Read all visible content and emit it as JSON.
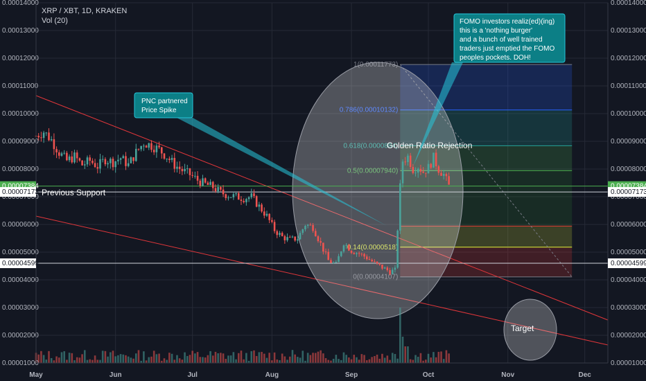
{
  "header": {
    "symbol": "XRP / XBT, 1D, KRAKEN",
    "volume": "Vol (20)"
  },
  "colors": {
    "background": "#131722",
    "up": "#4aa39b",
    "down": "#ef5350",
    "grid": "#262a36",
    "trend": "#e0363a",
    "accent": "#26c6da",
    "price_green": "#4caf50"
  },
  "chart_data": {
    "type": "candlestick",
    "ylim": [
      1e-05,
      0.00014
    ],
    "y_ticks": [
      "0.00001000",
      "0.00002000",
      "0.00003000",
      "0.00004000",
      "0.00005000",
      "0.00006000",
      "0.00007000",
      "0.00008000",
      "0.00009000",
      "0.00010000",
      "0.00011000",
      "0.00012000",
      "0.00013000",
      "0.00014000"
    ],
    "y_tick_values": [
      1e-05,
      2e-05,
      3e-05,
      4e-05,
      5e-05,
      6e-05,
      7e-05,
      8e-05,
      9e-05,
      0.0001,
      0.00011,
      0.00012,
      0.00013,
      0.00014
    ],
    "x_ticks": [
      "May",
      "Jun",
      "Jul",
      "Aug",
      "Sep",
      "Oct",
      "Nov",
      "Dec"
    ],
    "x_tick_dates": [
      "2018-05-01",
      "2018-06-01",
      "2018-07-01",
      "2018-08-01",
      "2018-09-01",
      "2018-10-01",
      "2018-11-01",
      "2018-12-01"
    ],
    "x_range": [
      "2018-05-01",
      "2018-12-10"
    ],
    "price_path": [
      [
        "2018-05-01",
        9.2e-05
      ],
      [
        "2018-05-04",
        9.35e-05
      ],
      [
        "2018-05-07",
        9.05e-05
      ],
      [
        "2018-05-10",
        8.6e-05
      ],
      [
        "2018-05-13",
        8.3e-05
      ],
      [
        "2018-05-16",
        8.45e-05
      ],
      [
        "2018-05-19",
        8.15e-05
      ],
      [
        "2018-05-22",
        8.3e-05
      ],
      [
        "2018-05-25",
        8.1e-05
      ],
      [
        "2018-05-28",
        8.35e-05
      ],
      [
        "2018-05-31",
        8.25e-05
      ],
      [
        "2018-06-03",
        8.4e-05
      ],
      [
        "2018-06-06",
        8.15e-05
      ],
      [
        "2018-06-09",
        8.6e-05
      ],
      [
        "2018-06-12",
        8.95e-05
      ],
      [
        "2018-06-15",
        8.85e-05
      ],
      [
        "2018-06-18",
        8.7e-05
      ],
      [
        "2018-06-21",
        8.45e-05
      ],
      [
        "2018-06-24",
        8.15e-05
      ],
      [
        "2018-06-27",
        7.95e-05
      ],
      [
        "2018-06-30",
        7.8e-05
      ],
      [
        "2018-07-03",
        7.6e-05
      ],
      [
        "2018-07-06",
        7.45e-05
      ],
      [
        "2018-07-09",
        7.35e-05
      ],
      [
        "2018-07-12",
        7.15e-05
      ],
      [
        "2018-07-15",
        7.05e-05
      ],
      [
        "2018-07-18",
        7e-05
      ],
      [
        "2018-07-21",
        6.95e-05
      ],
      [
        "2018-07-24",
        7e-05
      ],
      [
        "2018-07-27",
        6.65e-05
      ],
      [
        "2018-07-30",
        6.3e-05
      ],
      [
        "2018-08-02",
        5.8e-05
      ],
      [
        "2018-08-05",
        5.55e-05
      ],
      [
        "2018-08-08",
        5.45e-05
      ],
      [
        "2018-08-11",
        5.5e-05
      ],
      [
        "2018-08-14",
        6e-05
      ],
      [
        "2018-08-17",
        5.9e-05
      ],
      [
        "2018-08-20",
        5.3e-05
      ],
      [
        "2018-08-23",
        4.7e-05
      ],
      [
        "2018-08-26",
        4.55e-05
      ],
      [
        "2018-08-29",
        5.35e-05
      ],
      [
        "2018-09-01",
        5.05e-05
      ],
      [
        "2018-09-04",
        4.95e-05
      ],
      [
        "2018-09-07",
        4.8e-05
      ],
      [
        "2018-09-10",
        4.6e-05
      ],
      [
        "2018-09-13",
        4.45e-05
      ],
      [
        "2018-09-16",
        4.3e-05
      ],
      [
        "2018-09-18",
        4.35e-05
      ],
      [
        "2018-09-20",
        7.35e-05
      ],
      [
        "2018-09-21",
        8.3e-05
      ],
      [
        "2018-09-23",
        8.45e-05
      ],
      [
        "2018-09-25",
        8e-05
      ],
      [
        "2018-09-27",
        8.1e-05
      ],
      [
        "2018-09-29",
        7.9e-05
      ],
      [
        "2018-10-01",
        8.05e-05
      ],
      [
        "2018-10-03",
        8.4e-05
      ],
      [
        "2018-10-05",
        8e-05
      ],
      [
        "2018-10-07",
        7.8e-05
      ],
      [
        "2018-10-09",
        7.38e-05
      ]
    ],
    "volume_ylim": [
      0,
      0.00014
    ],
    "spike_volume_date": "2018-09-20",
    "price_labels": [
      {
        "value": 7.384e-05,
        "text": "0.00007384",
        "kind": "current"
      },
      {
        "value": 7.173e-05,
        "text": "0.00007173",
        "kind": "support"
      },
      {
        "value": 4.599e-05,
        "text": "0.00004599",
        "kind": "support"
      }
    ],
    "horizontal_lines": [
      7.384e-05,
      7.173e-05,
      4.599e-05
    ],
    "fibonacci": {
      "start_date": "2018-09-20",
      "end_date": "2018-11-26",
      "levels": [
        {
          "ratio": "1",
          "value": 0.00011773,
          "label": "1(0.00011773)",
          "color": "#787b86"
        },
        {
          "ratio": "0.786",
          "value": 0.00010132,
          "label": "0.786(0.00010132)",
          "color": "#2962ff"
        },
        {
          "ratio": "0.618",
          "value": 8.84e-05,
          "label": "0.618(0.0000884)",
          "color": "#26a69a"
        },
        {
          "ratio": "0.5",
          "value": 7.94e-05,
          "label": "0.5(0.00007940)",
          "color": "#4caf50"
        },
        {
          "ratio": "0.382",
          "value": 5.94e-05,
          "label": "",
          "color": "#e53935"
        },
        {
          "ratio": "0.236",
          "value": 5.18e-05,
          "label": "",
          "color": "#9e9d24"
        },
        {
          "ratio": "0.14",
          "value": 5.18e-05,
          "label": "0.14(0.0000518)",
          "color": "#cddc39"
        },
        {
          "ratio": "0",
          "value": 4.107e-05,
          "label": "0(0.00004107)",
          "color": "#787b86"
        }
      ]
    },
    "trend_lines": [
      {
        "from": [
          "2018-05-01",
          0.0001065
        ],
        "to": [
          "2018-12-10",
          2.55e-05
        ]
      },
      {
        "from": [
          "2018-05-01",
          6.3e-05
        ],
        "to": [
          "2018-12-10",
          1.65e-05
        ]
      }
    ],
    "annotations": [
      {
        "text": "Previous Support"
      },
      {
        "text": "Golden Ratio Rejection"
      },
      {
        "text": "Target"
      }
    ],
    "callouts": [
      {
        "lines": [
          "PNC partnered",
          "Price Spike"
        ]
      },
      {
        "lines": [
          "FOMO investors realiz(ed)(ing)",
          "this is a 'nothing burger'",
          "and a bunch of well trained",
          "traders just emptied the FOMO",
          "peoples pockets. DOH!"
        ]
      }
    ]
  }
}
